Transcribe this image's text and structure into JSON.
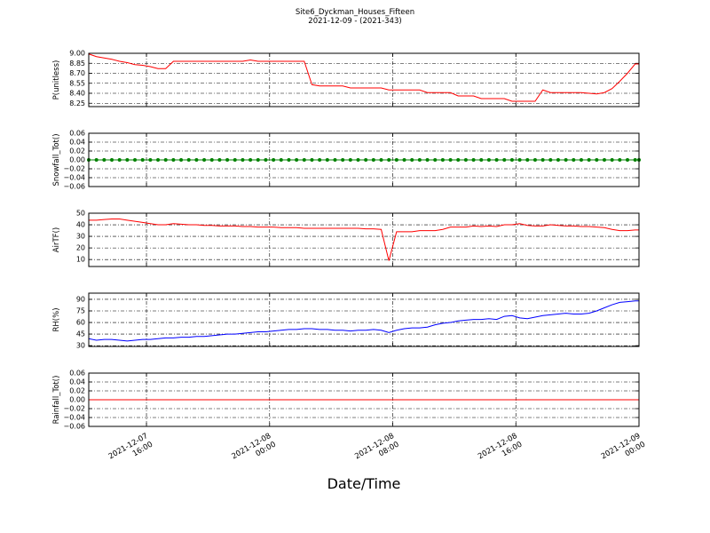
{
  "chart_data": [
    {
      "type": "line",
      "title": "Site6_Dyckman_Houses_Fifteen",
      "subtitle": "2021-12-09 - (2021-343)",
      "ylabel": "P(unitless)",
      "color": "#ff0000",
      "x": [
        "2021-12-07 12:15",
        "2021-12-07 12:45",
        "2021-12-07 13:15",
        "2021-12-07 13:45",
        "2021-12-07 14:15",
        "2021-12-07 14:45",
        "2021-12-07 15:15",
        "2021-12-07 15:45",
        "2021-12-07 16:15",
        "2021-12-07 16:45",
        "2021-12-07 17:15",
        "2021-12-07 17:45",
        "2021-12-07 18:15",
        "2021-12-07 18:45",
        "2021-12-07 19:15",
        "2021-12-07 19:45",
        "2021-12-07 20:15",
        "2021-12-07 20:45",
        "2021-12-07 21:15",
        "2021-12-07 21:45",
        "2021-12-07 22:15",
        "2021-12-07 22:45",
        "2021-12-07 23:15",
        "2021-12-07 23:45",
        "2021-12-08 00:15",
        "2021-12-08 00:45",
        "2021-12-08 01:15",
        "2021-12-08 01:45",
        "2021-12-08 02:15",
        "2021-12-08 02:45",
        "2021-12-08 03:15",
        "2021-12-08 03:45",
        "2021-12-08 04:15",
        "2021-12-08 04:45",
        "2021-12-08 05:15",
        "2021-12-08 05:45",
        "2021-12-08 06:15",
        "2021-12-08 06:45",
        "2021-12-08 07:15",
        "2021-12-08 07:45",
        "2021-12-08 08:15",
        "2021-12-08 08:45",
        "2021-12-08 09:15",
        "2021-12-08 09:45",
        "2021-12-08 10:15",
        "2021-12-08 10:45",
        "2021-12-08 11:15",
        "2021-12-08 11:45",
        "2021-12-08 12:15",
        "2021-12-08 12:45",
        "2021-12-08 13:15",
        "2021-12-08 13:45",
        "2021-12-08 14:15",
        "2021-12-08 14:45",
        "2021-12-08 15:15",
        "2021-12-08 15:45",
        "2021-12-08 16:15",
        "2021-12-08 16:45",
        "2021-12-08 17:15",
        "2021-12-08 17:45",
        "2021-12-08 18:15",
        "2021-12-08 18:45",
        "2021-12-08 19:15",
        "2021-12-08 19:45",
        "2021-12-08 20:15",
        "2021-12-08 20:45",
        "2021-12-08 21:15",
        "2021-12-08 21:45",
        "2021-12-08 22:15",
        "2021-12-08 22:45",
        "2021-12-08 23:15",
        "2021-12-08 23:45",
        "2021-12-09 00:00"
      ],
      "values": [
        8.99,
        8.95,
        8.93,
        8.91,
        8.88,
        8.86,
        8.83,
        8.82,
        8.8,
        8.77,
        8.77,
        8.88,
        8.88,
        8.88,
        8.88,
        8.88,
        8.88,
        8.88,
        8.88,
        8.88,
        8.88,
        8.9,
        8.88,
        8.88,
        8.88,
        8.88,
        8.88,
        8.88,
        8.88,
        8.53,
        8.51,
        8.51,
        8.51,
        8.51,
        8.48,
        8.48,
        8.48,
        8.48,
        8.48,
        8.45,
        8.45,
        8.45,
        8.45,
        8.45,
        8.41,
        8.41,
        8.41,
        8.41,
        8.36,
        8.36,
        8.36,
        8.32,
        8.32,
        8.32,
        8.32,
        8.28,
        8.28,
        8.28,
        8.28,
        8.45,
        8.41,
        8.41,
        8.41,
        8.41,
        8.41,
        8.4,
        8.39,
        8.41,
        8.47,
        8.58,
        8.7,
        8.84,
        8.84
      ],
      "xlim": [
        "2021-12-07 12:15",
        "2021-12-09 00:00"
      ],
      "xticks": [
        "2021-12-07 16:00",
        "2021-12-08 00:00",
        "2021-12-08 08:00",
        "2021-12-08 16:00",
        "2021-12-09 00:00"
      ],
      "ylim": [
        8.2,
        9.0
      ],
      "yticks": [
        {
          "value": 9.0,
          "label": "9.00"
        },
        8.85,
        {
          "value": 8.7,
          "label": "8.70"
        },
        8.55,
        {
          "value": 8.4,
          "label": "8.40"
        },
        8.25
      ],
      "grid": true
    },
    {
      "type": "line",
      "ylabel": "Snowfall_Tot()",
      "color": "#008000",
      "marker": true,
      "x": [
        "2021-12-07 12:15",
        "2021-12-07 12:45",
        "2021-12-07 13:15",
        "2021-12-07 13:45",
        "2021-12-07 14:15",
        "2021-12-07 14:45",
        "2021-12-07 15:15",
        "2021-12-07 15:45",
        "2021-12-07 16:15",
        "2021-12-07 16:45",
        "2021-12-07 17:15",
        "2021-12-07 17:45",
        "2021-12-07 18:15",
        "2021-12-07 18:45",
        "2021-12-07 19:15",
        "2021-12-07 19:45",
        "2021-12-07 20:15",
        "2021-12-07 20:45",
        "2021-12-07 21:15",
        "2021-12-07 21:45",
        "2021-12-07 22:15",
        "2021-12-07 22:45",
        "2021-12-07 23:15",
        "2021-12-07 23:45",
        "2021-12-08 00:15",
        "2021-12-08 00:45",
        "2021-12-08 01:15",
        "2021-12-08 01:45",
        "2021-12-08 02:15",
        "2021-12-08 02:45",
        "2021-12-08 03:15",
        "2021-12-08 03:45",
        "2021-12-08 04:15",
        "2021-12-08 04:45",
        "2021-12-08 05:15",
        "2021-12-08 05:45",
        "2021-12-08 06:15",
        "2021-12-08 06:45",
        "2021-12-08 07:15",
        "2021-12-08 07:45",
        "2021-12-08 08:15",
        "2021-12-08 08:45",
        "2021-12-08 09:15",
        "2021-12-08 09:45",
        "2021-12-08 10:15",
        "2021-12-08 10:45",
        "2021-12-08 11:15",
        "2021-12-08 11:45",
        "2021-12-08 12:15",
        "2021-12-08 12:45",
        "2021-12-08 13:15",
        "2021-12-08 13:45",
        "2021-12-08 14:15",
        "2021-12-08 14:45",
        "2021-12-08 15:15",
        "2021-12-08 15:45",
        "2021-12-08 16:15",
        "2021-12-08 16:45",
        "2021-12-08 17:15",
        "2021-12-08 17:45",
        "2021-12-08 18:15",
        "2021-12-08 18:45",
        "2021-12-08 19:15",
        "2021-12-08 19:45",
        "2021-12-08 20:15",
        "2021-12-08 20:45",
        "2021-12-08 21:15",
        "2021-12-08 21:45",
        "2021-12-08 22:15",
        "2021-12-08 22:45",
        "2021-12-08 23:15",
        "2021-12-08 23:45",
        "2021-12-09 00:00"
      ],
      "values": [
        0,
        0,
        0,
        0,
        0,
        0,
        0,
        0,
        0,
        0,
        0,
        0,
        0,
        0,
        0,
        0,
        0,
        0,
        0,
        0,
        0,
        0,
        0,
        0,
        0,
        0,
        0,
        0,
        0,
        0,
        0,
        0,
        0,
        0,
        0,
        0,
        0,
        0,
        0,
        0,
        0,
        0,
        0,
        0,
        0,
        0,
        0,
        0,
        0,
        0,
        0,
        0,
        0,
        0,
        0,
        0,
        0,
        0,
        0,
        0,
        0,
        0,
        0,
        0,
        0,
        0,
        0,
        0,
        0,
        0,
        0,
        0,
        0
      ],
      "xlim": [
        "2021-12-07 12:15",
        "2021-12-09 00:00"
      ],
      "xticks": [
        "2021-12-07 16:00",
        "2021-12-08 00:00",
        "2021-12-08 08:00",
        "2021-12-08 16:00",
        "2021-12-09 00:00"
      ],
      "ylim": [
        -0.06,
        0.06
      ],
      "yticks": [
        0.06,
        0.04,
        0.02,
        {
          "value": 0,
          "label": "0.00"
        },
        {
          "value": -0.02,
          "label": "−0.02"
        },
        {
          "value": -0.04,
          "label": "−0.04"
        },
        {
          "value": -0.06,
          "label": "−0.06"
        }
      ],
      "grid": true
    },
    {
      "type": "line",
      "ylabel": "AirTF()",
      "color": "#ff0000",
      "x": [
        "2021-12-07 12:15",
        "2021-12-07 12:45",
        "2021-12-07 13:15",
        "2021-12-07 13:45",
        "2021-12-07 14:15",
        "2021-12-07 14:45",
        "2021-12-07 15:15",
        "2021-12-07 15:45",
        "2021-12-07 16:15",
        "2021-12-07 16:45",
        "2021-12-07 17:15",
        "2021-12-07 17:45",
        "2021-12-07 18:15",
        "2021-12-07 18:45",
        "2021-12-07 19:15",
        "2021-12-07 19:45",
        "2021-12-07 20:15",
        "2021-12-07 20:45",
        "2021-12-07 21:15",
        "2021-12-07 21:45",
        "2021-12-07 22:15",
        "2021-12-07 22:45",
        "2021-12-07 23:15",
        "2021-12-07 23:45",
        "2021-12-08 00:15",
        "2021-12-08 00:45",
        "2021-12-08 01:15",
        "2021-12-08 01:45",
        "2021-12-08 02:15",
        "2021-12-08 02:45",
        "2021-12-08 03:15",
        "2021-12-08 03:45",
        "2021-12-08 04:15",
        "2021-12-08 04:45",
        "2021-12-08 05:15",
        "2021-12-08 05:45",
        "2021-12-08 06:15",
        "2021-12-08 06:45",
        "2021-12-08 07:15",
        "2021-12-08 07:45",
        "2021-12-08 08:15",
        "2021-12-08 08:45",
        "2021-12-08 09:15",
        "2021-12-08 09:45",
        "2021-12-08 10:15",
        "2021-12-08 10:45",
        "2021-12-08 11:15",
        "2021-12-08 11:45",
        "2021-12-08 12:15",
        "2021-12-08 12:45",
        "2021-12-08 13:15",
        "2021-12-08 13:45",
        "2021-12-08 14:15",
        "2021-12-08 14:45",
        "2021-12-08 15:15",
        "2021-12-08 15:45",
        "2021-12-08 16:15",
        "2021-12-08 16:45",
        "2021-12-08 17:15",
        "2021-12-08 17:45",
        "2021-12-08 18:15",
        "2021-12-08 18:45",
        "2021-12-08 19:15",
        "2021-12-08 19:45",
        "2021-12-08 20:15",
        "2021-12-08 20:45",
        "2021-12-08 21:15",
        "2021-12-08 21:45",
        "2021-12-08 22:15",
        "2021-12-08 22:45",
        "2021-12-08 23:15",
        "2021-12-08 23:45",
        "2021-12-09 00:00"
      ],
      "values": [
        44,
        44,
        44.5,
        45,
        45,
        44,
        43,
        42,
        41,
        40,
        40,
        41,
        40.5,
        40,
        40,
        39.5,
        39.5,
        39,
        39,
        39,
        38.5,
        38.5,
        38,
        38,
        38,
        37.5,
        37.5,
        37.5,
        37,
        37,
        37,
        37,
        37,
        37,
        37,
        37,
        36.5,
        36.5,
        36,
        9,
        34,
        34,
        34,
        35,
        35,
        35,
        36,
        38,
        38,
        38,
        39,
        38.5,
        39,
        38.5,
        40,
        40,
        41,
        39.5,
        39,
        39,
        40,
        39.5,
        39,
        39,
        38.5,
        38.5,
        38,
        37.5,
        36,
        35,
        35,
        35.5,
        35.5
      ],
      "xlim": [
        "2021-12-07 12:15",
        "2021-12-09 00:00"
      ],
      "xticks": [
        "2021-12-07 16:00",
        "2021-12-08 00:00",
        "2021-12-08 08:00",
        "2021-12-08 16:00",
        "2021-12-09 00:00"
      ],
      "ylim": [
        4,
        50
      ],
      "yticks": [
        50,
        40,
        30,
        20,
        10
      ],
      "grid": true
    },
    {
      "type": "line",
      "ylabel": "RH(%)",
      "color": "#0000ff",
      "x": [
        "2021-12-07 12:15",
        "2021-12-07 12:45",
        "2021-12-07 13:15",
        "2021-12-07 13:45",
        "2021-12-07 14:15",
        "2021-12-07 14:45",
        "2021-12-07 15:15",
        "2021-12-07 15:45",
        "2021-12-07 16:15",
        "2021-12-07 16:45",
        "2021-12-07 17:15",
        "2021-12-07 17:45",
        "2021-12-07 18:15",
        "2021-12-07 18:45",
        "2021-12-07 19:15",
        "2021-12-07 19:45",
        "2021-12-07 20:15",
        "2021-12-07 20:45",
        "2021-12-07 21:15",
        "2021-12-07 21:45",
        "2021-12-07 22:15",
        "2021-12-07 22:45",
        "2021-12-07 23:15",
        "2021-12-07 23:45",
        "2021-12-08 00:15",
        "2021-12-08 00:45",
        "2021-12-08 01:15",
        "2021-12-08 01:45",
        "2021-12-08 02:15",
        "2021-12-08 02:45",
        "2021-12-08 03:15",
        "2021-12-08 03:45",
        "2021-12-08 04:15",
        "2021-12-08 04:45",
        "2021-12-08 05:15",
        "2021-12-08 05:45",
        "2021-12-08 06:15",
        "2021-12-08 06:45",
        "2021-12-08 07:15",
        "2021-12-08 07:45",
        "2021-12-08 08:15",
        "2021-12-08 08:45",
        "2021-12-08 09:15",
        "2021-12-08 09:45",
        "2021-12-08 10:15",
        "2021-12-08 10:45",
        "2021-12-08 11:15",
        "2021-12-08 11:45",
        "2021-12-08 12:15",
        "2021-12-08 12:45",
        "2021-12-08 13:15",
        "2021-12-08 13:45",
        "2021-12-08 14:15",
        "2021-12-08 14:45",
        "2021-12-08 15:15",
        "2021-12-08 15:45",
        "2021-12-08 16:15",
        "2021-12-08 16:45",
        "2021-12-08 17:15",
        "2021-12-08 17:45",
        "2021-12-08 18:15",
        "2021-12-08 18:45",
        "2021-12-08 19:15",
        "2021-12-08 19:45",
        "2021-12-08 20:15",
        "2021-12-08 20:45",
        "2021-12-08 21:15",
        "2021-12-08 21:45",
        "2021-12-08 22:15",
        "2021-12-08 22:45",
        "2021-12-08 23:15",
        "2021-12-08 23:45",
        "2021-12-09 00:00"
      ],
      "values": [
        39,
        37,
        38,
        38,
        37,
        36,
        37,
        38,
        38,
        39,
        40,
        40,
        41,
        41,
        42,
        42,
        43,
        44,
        45,
        45,
        46,
        47,
        48,
        48,
        49,
        50,
        51,
        51,
        52,
        52,
        51,
        51,
        50,
        50,
        49,
        50,
        50,
        51,
        50,
        47,
        50,
        52,
        53,
        53,
        54,
        57,
        59,
        60,
        62,
        63,
        64,
        64,
        65,
        64,
        68,
        69,
        66,
        65,
        67,
        69,
        70,
        71,
        72,
        71,
        71,
        72,
        75,
        79,
        83,
        86,
        87,
        88,
        88
      ],
      "xlim": [
        "2021-12-07 12:15",
        "2021-12-09 00:00"
      ],
      "xticks": [
        "2021-12-07 16:00",
        "2021-12-08 00:00",
        "2021-12-08 08:00",
        "2021-12-08 16:00",
        "2021-12-09 00:00"
      ],
      "ylim": [
        29,
        98
      ],
      "yticks": [
        90,
        75,
        60,
        45,
        30
      ],
      "grid": true
    },
    {
      "type": "line",
      "ylabel": "Rainfall_Tot()",
      "xlabel": "Date/Time",
      "color": "#ff0000",
      "x": [
        "2021-12-07 12:15",
        "2021-12-07 12:45",
        "2021-12-07 13:15",
        "2021-12-07 13:45",
        "2021-12-07 14:15",
        "2021-12-07 14:45",
        "2021-12-07 15:15",
        "2021-12-07 15:45",
        "2021-12-07 16:15",
        "2021-12-07 16:45",
        "2021-12-07 17:15",
        "2021-12-07 17:45",
        "2021-12-07 18:15",
        "2021-12-07 18:45",
        "2021-12-07 19:15",
        "2021-12-07 19:45",
        "2021-12-07 20:15",
        "2021-12-07 20:45",
        "2021-12-07 21:15",
        "2021-12-07 21:45",
        "2021-12-07 22:15",
        "2021-12-07 22:45",
        "2021-12-07 23:15",
        "2021-12-07 23:45",
        "2021-12-08 00:15",
        "2021-12-08 00:45",
        "2021-12-08 01:15",
        "2021-12-08 01:45",
        "2021-12-08 02:15",
        "2021-12-08 02:45",
        "2021-12-08 03:15",
        "2021-12-08 03:45",
        "2021-12-08 04:15",
        "2021-12-08 04:45",
        "2021-12-08 05:15",
        "2021-12-08 05:45",
        "2021-12-08 06:15",
        "2021-12-08 06:45",
        "2021-12-08 07:15",
        "2021-12-08 07:45",
        "2021-12-08 08:15",
        "2021-12-08 08:45",
        "2021-12-08 09:15",
        "2021-12-08 09:45",
        "2021-12-08 10:15",
        "2021-12-08 10:45",
        "2021-12-08 11:15",
        "2021-12-08 11:45",
        "2021-12-08 12:15",
        "2021-12-08 12:45",
        "2021-12-08 13:15",
        "2021-12-08 13:45",
        "2021-12-08 14:15",
        "2021-12-08 14:45",
        "2021-12-08 15:15",
        "2021-12-08 15:45",
        "2021-12-08 16:15",
        "2021-12-08 16:45",
        "2021-12-08 17:15",
        "2021-12-08 17:45",
        "2021-12-08 18:15",
        "2021-12-08 18:45",
        "2021-12-08 19:15",
        "2021-12-08 19:45",
        "2021-12-08 20:15",
        "2021-12-08 20:45",
        "2021-12-08 21:15",
        "2021-12-08 21:45",
        "2021-12-08 22:15",
        "2021-12-08 22:45",
        "2021-12-08 23:15",
        "2021-12-08 23:45",
        "2021-12-09 00:00"
      ],
      "values": [
        0,
        0,
        0,
        0,
        0,
        0,
        0,
        0,
        0,
        0,
        0,
        0,
        0,
        0,
        0,
        0,
        0,
        0,
        0,
        0,
        0,
        0,
        0,
        0,
        0,
        0,
        0,
        0,
        0,
        0,
        0,
        0,
        0,
        0,
        0,
        0,
        0,
        0,
        0,
        0,
        0,
        0,
        0,
        0,
        0,
        0,
        0,
        0,
        0,
        0,
        0,
        0,
        0,
        0,
        0,
        0,
        0,
        0,
        0,
        0,
        0,
        0,
        0,
        0,
        0,
        0,
        0,
        0,
        0,
        0,
        0,
        0,
        0
      ],
      "xlim": [
        "2021-12-07 12:15",
        "2021-12-09 00:00"
      ],
      "xticks": [
        "2021-12-07 16:00",
        "2021-12-08 00:00",
        "2021-12-08 08:00",
        "2021-12-08 16:00",
        "2021-12-09 00:00"
      ],
      "ylim": [
        -0.06,
        0.06
      ],
      "yticks": [
        0.06,
        0.04,
        0.02,
        {
          "value": 0,
          "label": "0.00"
        },
        {
          "value": -0.02,
          "label": "−0.02"
        },
        {
          "value": -0.04,
          "label": "−0.04"
        },
        {
          "value": -0.06,
          "label": "−0.06"
        }
      ],
      "grid": true
    }
  ]
}
